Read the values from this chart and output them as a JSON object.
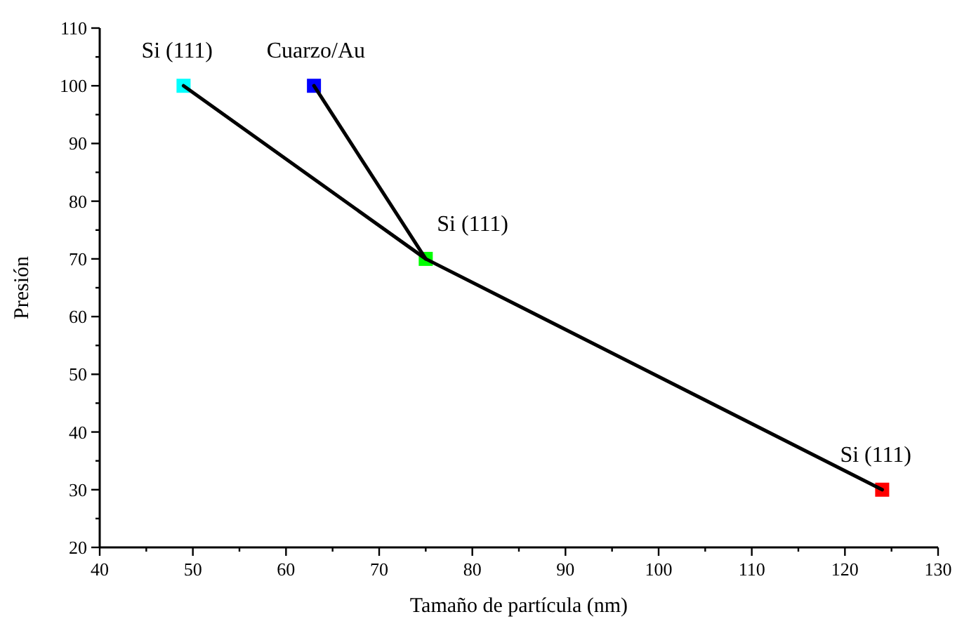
{
  "chart_data": {
    "type": "scatter",
    "xlabel": "Tamaño de partícula (nm)",
    "ylabel": "Presión",
    "xlim": [
      40,
      130
    ],
    "ylim": [
      20,
      110
    ],
    "xticks": [
      40,
      {
        "value": 45,
        "label": null
      },
      50,
      {
        "value": 55,
        "label": null
      },
      60,
      {
        "value": 65,
        "label": null
      },
      70,
      {
        "value": 75,
        "label": null
      },
      80,
      {
        "value": 85,
        "label": null
      },
      90,
      {
        "value": 95,
        "label": null
      },
      100,
      {
        "value": 105,
        "label": null
      },
      110,
      {
        "value": 115,
        "label": null
      },
      120,
      {
        "value": 125,
        "label": null
      },
      130
    ],
    "yticks": [
      20,
      {
        "value": 25,
        "label": null
      },
      30,
      {
        "value": 35,
        "label": null
      },
      40,
      {
        "value": 45,
        "label": null
      },
      50,
      {
        "value": 55,
        "label": null
      },
      60,
      {
        "value": 65,
        "label": null
      },
      70,
      {
        "value": 75,
        "label": null
      },
      80,
      {
        "value": 85,
        "label": null
      },
      90,
      {
        "value": 95,
        "label": null
      },
      100,
      {
        "value": 105,
        "label": null
      },
      110
    ],
    "grid": false,
    "series": [
      {
        "marker": "square",
        "x": [
          49,
          63,
          75,
          124
        ],
        "values": [
          100,
          100,
          70,
          30
        ],
        "colors": [
          "#00ffff",
          "#0000ff",
          "#00ff00",
          "#ff0000"
        ]
      },
      {
        "type": "line",
        "marker": "none",
        "color": "#000000",
        "x": [
          49,
          75,
          124
        ],
        "values": [
          100,
          70,
          30
        ]
      },
      {
        "type": "line",
        "marker": "none",
        "color": "#000000",
        "x": [
          63,
          75
        ],
        "values": [
          100,
          70
        ]
      }
    ],
    "annotations": [
      {
        "text": "Si (111)",
        "x": 49,
        "y": 100
      },
      {
        "text": "Cuarzo/Au",
        "x": 63,
        "y": 100
      },
      {
        "text": "Si (111)",
        "x": 75,
        "y": 70
      },
      {
        "text": "Si (111)",
        "x": 124,
        "y": 30
      }
    ]
  }
}
